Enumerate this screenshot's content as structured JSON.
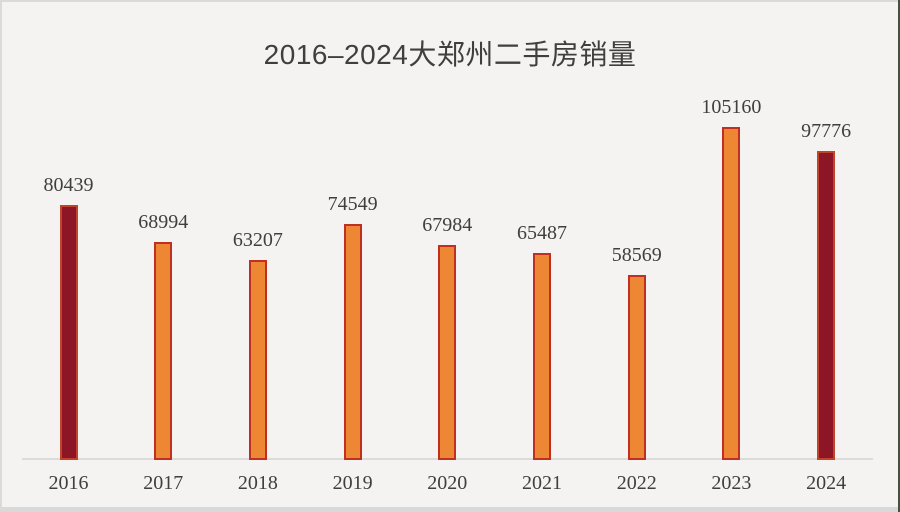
{
  "window": {
    "background": "#F4F3F1",
    "edge_color": "#DADADA",
    "bottom_edge_color": "#D9D9D9",
    "right_edge_color": "#46503F"
  },
  "chart_data": {
    "type": "bar",
    "title": "2016–2024大郑州二手房销量",
    "title_color": "#3F3F3F",
    "categories": [
      "2016",
      "2017",
      "2018",
      "2019",
      "2020",
      "2021",
      "2022",
      "2023",
      "2024"
    ],
    "values": [
      80439,
      68994,
      63207,
      74549,
      67984,
      65487,
      58569,
      105160,
      97776
    ],
    "point_styles": [
      "dark",
      "orange",
      "orange",
      "orange",
      "orange",
      "orange",
      "orange",
      "orange",
      "dark"
    ],
    "styles": {
      "orange": {
        "fill": "#ED8733",
        "stroke": "#C03022"
      },
      "dark": {
        "fill": "#8C1626",
        "stroke": "#C0432A"
      }
    },
    "label_color": "#3F3F3F",
    "axis_line_color": "#DBDBDB",
    "xlabel": "",
    "ylabel": "",
    "ylim": [
      0,
      110000
    ],
    "grid": false,
    "legend": "none",
    "data_labels_shown": true
  }
}
